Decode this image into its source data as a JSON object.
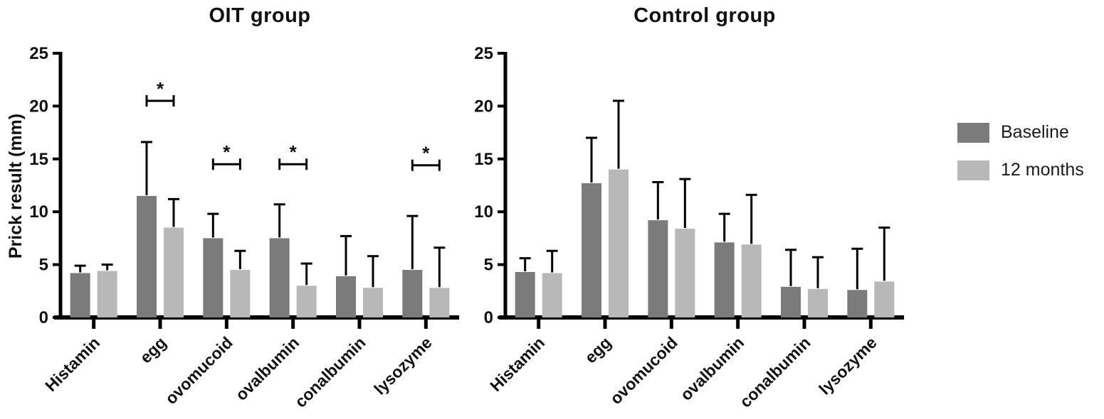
{
  "figure": {
    "ylabel": "Prick result (mm)",
    "axis_color": "#000000",
    "background": "#ffffff",
    "legend": {
      "position": "right",
      "items": [
        {
          "label": "Baseline",
          "color": "#7b7b7b"
        },
        {
          "label": "12 months",
          "color": "#b8b8b8"
        }
      ]
    }
  },
  "chart_data": [
    {
      "type": "bar",
      "title": "OIT group",
      "ylabel": "Prick result (mm)",
      "xlabel": "",
      "categories": [
        "Histamin",
        "egg",
        "ovomucoid",
        "ovalbumin",
        "conalbumin",
        "lysozyme"
      ],
      "series": [
        {
          "name": "Baseline",
          "color": "#7b7b7b",
          "values": [
            4.2,
            11.5,
            7.5,
            7.5,
            3.9,
            4.5
          ],
          "error_up": [
            0.7,
            5.1,
            2.3,
            3.2,
            3.8,
            5.1
          ]
        },
        {
          "name": "12 months",
          "color": "#b8b8b8",
          "values": [
            4.4,
            8.5,
            4.5,
            3.0,
            2.8,
            2.8
          ],
          "error_up": [
            0.6,
            2.7,
            1.8,
            2.1,
            3.0,
            3.8
          ]
        }
      ],
      "ylim": [
        0,
        25
      ],
      "yticks": [
        0,
        5,
        10,
        15,
        20,
        25
      ],
      "grid": false,
      "significance": [
        {
          "category": "egg",
          "y": 20.5,
          "label": "*"
        },
        {
          "category": "ovomucoid",
          "y": 14.5,
          "label": "*"
        },
        {
          "category": "ovalbumin",
          "y": 14.5,
          "label": "*"
        },
        {
          "category": "lysozyme",
          "y": 14.4,
          "label": "*"
        }
      ]
    },
    {
      "type": "bar",
      "title": "Control group",
      "ylabel": "",
      "xlabel": "",
      "categories": [
        "Histamin",
        "egg",
        "ovomucoid",
        "ovalbumin",
        "conalbumin",
        "lysozyme"
      ],
      "series": [
        {
          "name": "Baseline",
          "color": "#7b7b7b",
          "values": [
            4.3,
            12.7,
            9.2,
            7.1,
            2.9,
            2.6
          ],
          "error_up": [
            1.3,
            4.3,
            3.6,
            2.7,
            3.5,
            3.9
          ]
        },
        {
          "name": "12 months",
          "color": "#b8b8b8",
          "values": [
            4.2,
            14.0,
            8.4,
            6.9,
            2.7,
            3.4
          ],
          "error_up": [
            2.1,
            6.5,
            4.7,
            4.7,
            3.0,
            5.1
          ]
        }
      ],
      "ylim": [
        0,
        25
      ],
      "yticks": [
        0,
        5,
        10,
        15,
        20,
        25
      ],
      "grid": false,
      "significance": []
    }
  ]
}
